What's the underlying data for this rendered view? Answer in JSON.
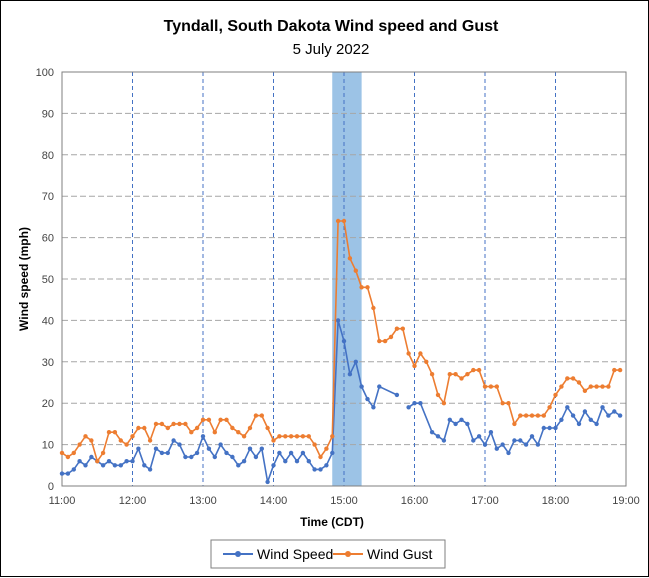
{
  "chart_data": {
    "type": "line",
    "title": "Tyndall, South Dakota Wind speed and Gust",
    "subtitle": "5 July 2022",
    "xlabel": "Time (CDT)",
    "ylabel": "Wind speed (mph)",
    "xlim": [
      "11:00",
      "19:00"
    ],
    "ylim": [
      0,
      100
    ],
    "x_ticks": [
      "11:00",
      "12:00",
      "13:00",
      "14:00",
      "15:00",
      "16:00",
      "17:00",
      "18:00",
      "19:00"
    ],
    "y_ticks": [
      0,
      10,
      20,
      30,
      40,
      50,
      60,
      70,
      80,
      90,
      100
    ],
    "grid": true,
    "legend_position": "bottom",
    "highlight_band": {
      "from": "14:50",
      "to": "15:15",
      "color": "#9cc3e6"
    },
    "series": [
      {
        "name": "Wind Speed",
        "color": "#4472c4",
        "segments": [
          [
            [
              "11:00",
              3
            ],
            [
              "11:05",
              3
            ],
            [
              "11:10",
              4
            ],
            [
              "11:15",
              6
            ],
            [
              "11:20",
              5
            ],
            [
              "11:25",
              7
            ],
            [
              "11:30",
              6
            ],
            [
              "11:35",
              5
            ],
            [
              "11:40",
              6
            ],
            [
              "11:45",
              5
            ],
            [
              "11:50",
              5
            ],
            [
              "11:55",
              6
            ],
            [
              "12:00",
              6
            ],
            [
              "12:05",
              9
            ],
            [
              "12:10",
              5
            ],
            [
              "12:15",
              4
            ],
            [
              "12:20",
              9
            ],
            [
              "12:25",
              8
            ],
            [
              "12:30",
              8
            ],
            [
              "12:35",
              11
            ],
            [
              "12:40",
              10
            ],
            [
              "12:45",
              7
            ],
            [
              "12:50",
              7
            ],
            [
              "12:55",
              8
            ],
            [
              "13:00",
              12
            ],
            [
              "13:05",
              9
            ],
            [
              "13:10",
              7
            ],
            [
              "13:15",
              10
            ],
            [
              "13:20",
              8
            ],
            [
              "13:25",
              7
            ],
            [
              "13:30",
              5
            ],
            [
              "13:35",
              6
            ],
            [
              "13:40",
              9
            ],
            [
              "13:45",
              7
            ],
            [
              "13:50",
              9
            ],
            [
              "13:55",
              1
            ],
            [
              "14:00",
              5
            ],
            [
              "14:05",
              8
            ],
            [
              "14:10",
              6
            ],
            [
              "14:15",
              8
            ],
            [
              "14:20",
              6
            ],
            [
              "14:25",
              8
            ],
            [
              "14:30",
              6
            ],
            [
              "14:35",
              4
            ],
            [
              "14:40",
              4
            ],
            [
              "14:45",
              5
            ],
            [
              "14:50",
              8
            ],
            [
              "14:55",
              40
            ],
            [
              "15:00",
              35
            ],
            [
              "15:05",
              27
            ],
            [
              "15:10",
              30
            ],
            [
              "15:15",
              24
            ],
            [
              "15:20",
              21
            ],
            [
              "15:25",
              19
            ],
            [
              "15:30",
              24
            ],
            [
              "15:45",
              22
            ]
          ],
          [
            [
              "15:55",
              19
            ],
            [
              "16:00",
              20
            ],
            [
              "16:05",
              20
            ],
            [
              "16:15",
              13
            ],
            [
              "16:20",
              12
            ],
            [
              "16:25",
              11
            ],
            [
              "16:30",
              16
            ],
            [
              "16:35",
              15
            ],
            [
              "16:40",
              16
            ],
            [
              "16:45",
              15
            ],
            [
              "16:50",
              11
            ],
            [
              "16:55",
              12
            ],
            [
              "17:00",
              10
            ],
            [
              "17:05",
              13
            ],
            [
              "17:10",
              9
            ],
            [
              "17:15",
              10
            ],
            [
              "17:20",
              8
            ],
            [
              "17:25",
              11
            ],
            [
              "17:30",
              11
            ],
            [
              "17:35",
              10
            ],
            [
              "17:40",
              12
            ],
            [
              "17:45",
              10
            ],
            [
              "17:50",
              14
            ],
            [
              "17:55",
              14
            ],
            [
              "18:00",
              14
            ],
            [
              "18:05",
              16
            ],
            [
              "18:10",
              19
            ],
            [
              "18:15",
              17
            ],
            [
              "18:20",
              15
            ],
            [
              "18:25",
              18
            ],
            [
              "18:30",
              16
            ],
            [
              "18:35",
              15
            ],
            [
              "18:40",
              19
            ],
            [
              "18:45",
              17
            ],
            [
              "18:50",
              18
            ],
            [
              "18:55",
              17
            ]
          ]
        ]
      },
      {
        "name": "Wind Gust",
        "color": "#ed7d31",
        "segments": [
          [
            [
              "11:00",
              8
            ],
            [
              "11:05",
              7
            ],
            [
              "11:10",
              8
            ],
            [
              "11:15",
              10
            ],
            [
              "11:20",
              12
            ],
            [
              "11:25",
              11
            ],
            [
              "11:30",
              6
            ],
            [
              "11:35",
              8
            ],
            [
              "11:40",
              13
            ],
            [
              "11:45",
              13
            ],
            [
              "11:50",
              11
            ],
            [
              "11:55",
              10
            ],
            [
              "12:00",
              12
            ],
            [
              "12:05",
              14
            ],
            [
              "12:10",
              14
            ],
            [
              "12:15",
              11
            ],
            [
              "12:20",
              15
            ],
            [
              "12:25",
              15
            ],
            [
              "12:30",
              14
            ],
            [
              "12:35",
              15
            ],
            [
              "12:40",
              15
            ],
            [
              "12:45",
              15
            ],
            [
              "12:50",
              13
            ],
            [
              "12:55",
              14
            ],
            [
              "13:00",
              16
            ],
            [
              "13:05",
              16
            ],
            [
              "13:10",
              13
            ],
            [
              "13:15",
              16
            ],
            [
              "13:20",
              16
            ],
            [
              "13:25",
              14
            ],
            [
              "13:30",
              13
            ],
            [
              "13:35",
              12
            ],
            [
              "13:40",
              14
            ],
            [
              "13:45",
              17
            ],
            [
              "13:50",
              17
            ],
            [
              "13:55",
              14
            ],
            [
              "14:00",
              11
            ],
            [
              "14:05",
              12
            ],
            [
              "14:10",
              12
            ],
            [
              "14:15",
              12
            ],
            [
              "14:20",
              12
            ],
            [
              "14:25",
              12
            ],
            [
              "14:30",
              12
            ],
            [
              "14:35",
              10
            ],
            [
              "14:40",
              7
            ],
            [
              "14:45",
              9
            ],
            [
              "14:50",
              12
            ],
            [
              "14:55",
              64
            ],
            [
              "15:00",
              64
            ],
            [
              "15:05",
              55
            ],
            [
              "15:10",
              52
            ],
            [
              "15:15",
              48
            ],
            [
              "15:20",
              48
            ],
            [
              "15:25",
              43
            ],
            [
              "15:30",
              35
            ],
            [
              "15:35",
              35
            ],
            [
              "15:40",
              36
            ],
            [
              "15:45",
              38
            ],
            [
              "15:50",
              38
            ],
            [
              "15:55",
              32
            ],
            [
              "16:00",
              29
            ],
            [
              "16:05",
              32
            ],
            [
              "16:10",
              30
            ],
            [
              "16:15",
              27
            ],
            [
              "16:20",
              22
            ],
            [
              "16:25",
              20
            ],
            [
              "16:30",
              27
            ],
            [
              "16:35",
              27
            ],
            [
              "16:40",
              26
            ],
            [
              "16:45",
              27
            ],
            [
              "16:50",
              28
            ],
            [
              "16:55",
              28
            ],
            [
              "17:00",
              24
            ],
            [
              "17:05",
              24
            ],
            [
              "17:10",
              24
            ],
            [
              "17:15",
              20
            ],
            [
              "17:20",
              20
            ],
            [
              "17:25",
              15
            ],
            [
              "17:30",
              17
            ],
            [
              "17:35",
              17
            ],
            [
              "17:40",
              17
            ],
            [
              "17:45",
              17
            ],
            [
              "17:50",
              17
            ],
            [
              "17:55",
              19
            ],
            [
              "18:00",
              22
            ],
            [
              "18:05",
              24
            ],
            [
              "18:10",
              26
            ],
            [
              "18:15",
              26
            ],
            [
              "18:20",
              25
            ],
            [
              "18:25",
              23
            ],
            [
              "18:30",
              24
            ],
            [
              "18:35",
              24
            ],
            [
              "18:40",
              24
            ],
            [
              "18:45",
              24
            ],
            [
              "18:50",
              28
            ],
            [
              "18:55",
              28
            ]
          ]
        ]
      }
    ]
  }
}
